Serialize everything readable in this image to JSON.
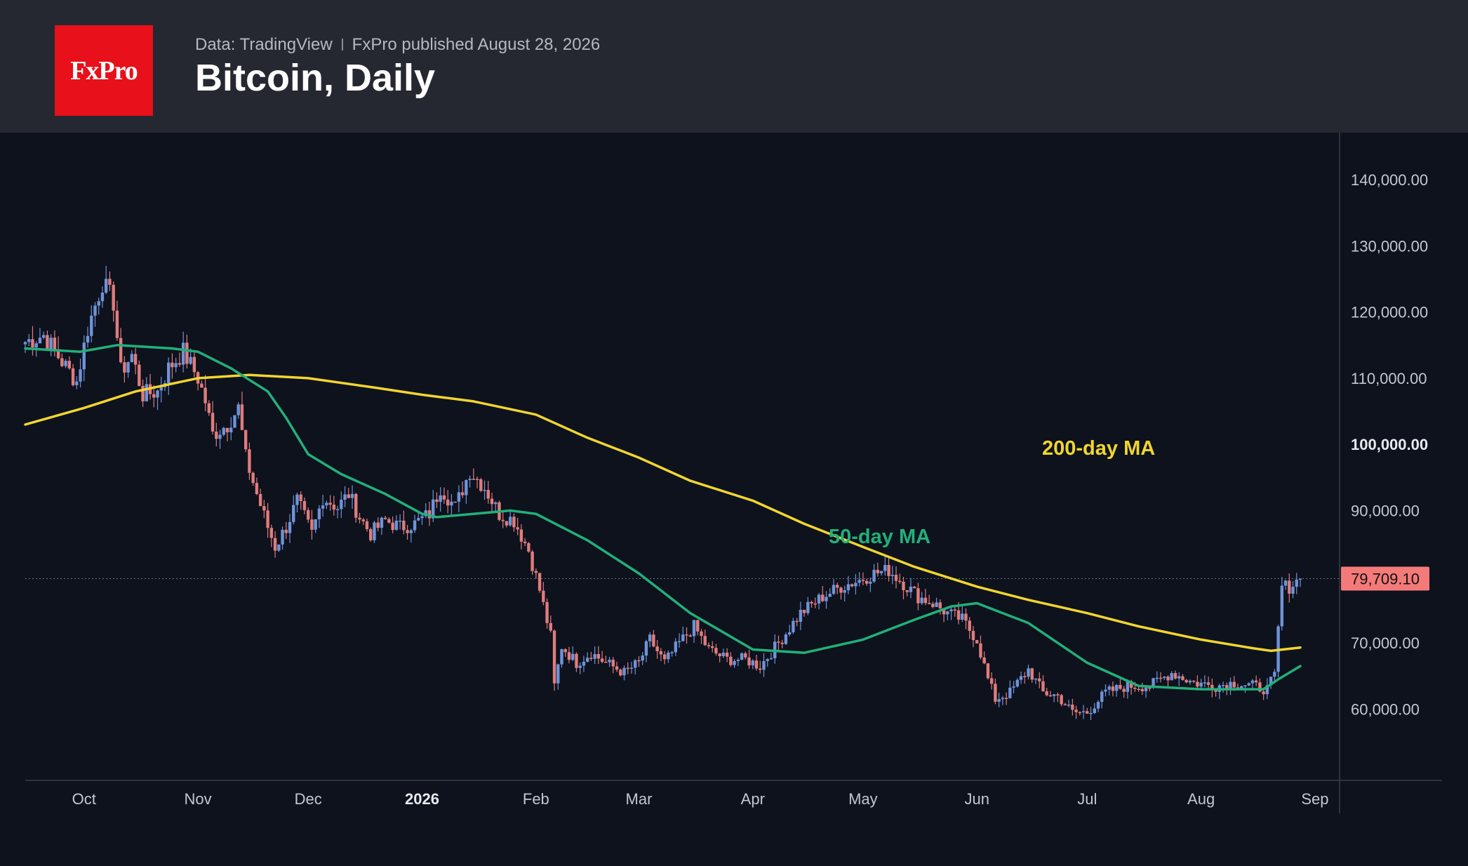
{
  "header": {
    "logo_text": "FxPro",
    "source": "Data: TradingView",
    "published": "FxPro published August 28, 2026",
    "title": "Bitcoin, Daily"
  },
  "colors": {
    "background": "#0d121d",
    "header_bg": "#262831",
    "logo_red": "#e8101a",
    "candle_up": "#6f93d8",
    "candle_down": "#e07c7c",
    "ma50": "#22b07a",
    "ma200": "#f2d52f",
    "price_tag": "#f47a7a"
  },
  "chart_data": {
    "type": "candlestick",
    "instrument": "Bitcoin",
    "timeframe": "Daily",
    "x_range": [
      "2025-09-15",
      "2026-08-28"
    ],
    "ylim": [
      50000,
      145000
    ],
    "y_ticks": [
      {
        "value": 140000,
        "label": "140,000.00",
        "bold": false
      },
      {
        "value": 130000,
        "label": "130,000.00",
        "bold": false
      },
      {
        "value": 120000,
        "label": "120,000.00",
        "bold": false
      },
      {
        "value": 110000,
        "label": "110,000.00",
        "bold": false
      },
      {
        "value": 100000,
        "label": "100,000.00",
        "bold": true
      },
      {
        "value": 90000,
        "label": "90,000.00",
        "bold": false
      },
      {
        "value": 70000,
        "label": "70,000.00",
        "bold": false
      },
      {
        "value": 60000,
        "label": "60,000.00",
        "bold": false
      }
    ],
    "x_ticks": [
      {
        "date": "2025-10-01",
        "label": "Oct",
        "bold": false
      },
      {
        "date": "2025-11-01",
        "label": "Nov",
        "bold": false
      },
      {
        "date": "2025-12-01",
        "label": "Dec",
        "bold": false
      },
      {
        "date": "2026-01-01",
        "label": "2026",
        "bold": true
      },
      {
        "date": "2026-02-01",
        "label": "Feb",
        "bold": false
      },
      {
        "date": "2026-03-01",
        "label": "Mar",
        "bold": false
      },
      {
        "date": "2026-04-01",
        "label": "Apr",
        "bold": false
      },
      {
        "date": "2026-05-01",
        "label": "May",
        "bold": false
      },
      {
        "date": "2026-06-01",
        "label": "Jun",
        "bold": false
      },
      {
        "date": "2026-07-01",
        "label": "Jul",
        "bold": false
      },
      {
        "date": "2026-08-01",
        "label": "Aug",
        "bold": false
      },
      {
        "date": "2026-09-01",
        "label": "Sep",
        "bold": false
      }
    ],
    "close_path": [
      [
        "2025-09-15",
        115500
      ],
      [
        "2025-09-20",
        116500
      ],
      [
        "2025-09-25",
        112500
      ],
      [
        "2025-09-29",
        109500
      ],
      [
        "2025-10-02",
        117500
      ],
      [
        "2025-10-06",
        124500
      ],
      [
        "2025-10-09",
        121500
      ],
      [
        "2025-10-11",
        111000
      ],
      [
        "2025-10-14",
        113500
      ],
      [
        "2025-10-17",
        107500
      ],
      [
        "2025-10-21",
        108000
      ],
      [
        "2025-10-24",
        111500
      ],
      [
        "2025-10-28",
        114000
      ],
      [
        "2025-11-01",
        110000
      ],
      [
        "2025-11-03",
        106500
      ],
      [
        "2025-11-05",
        101500
      ],
      [
        "2025-11-09",
        103000
      ],
      [
        "2025-11-12",
        105500
      ],
      [
        "2025-11-14",
        98000
      ],
      [
        "2025-11-17",
        92500
      ],
      [
        "2025-11-20",
        87500
      ],
      [
        "2025-11-22",
        84500
      ],
      [
        "2025-11-25",
        87500
      ],
      [
        "2025-11-28",
        91500
      ],
      [
        "2025-12-02",
        86500
      ],
      [
        "2025-12-05",
        92000
      ],
      [
        "2025-12-09",
        90500
      ],
      [
        "2025-12-12",
        92500
      ],
      [
        "2025-12-15",
        89000
      ],
      [
        "2025-12-18",
        86500
      ],
      [
        "2025-12-22",
        88500
      ],
      [
        "2025-12-26",
        87500
      ],
      [
        "2025-12-30",
        88000
      ],
      [
        "2026-01-03",
        89500
      ],
      [
        "2026-01-06",
        93500
      ],
      [
        "2026-01-10",
        90500
      ],
      [
        "2026-01-14",
        96000
      ],
      [
        "2026-01-18",
        93500
      ],
      [
        "2026-01-22",
        89500
      ],
      [
        "2026-01-26",
        88500
      ],
      [
        "2026-01-30",
        84000
      ],
      [
        "2026-02-02",
        78000
      ],
      [
        "2026-02-05",
        71000
      ],
      [
        "2026-02-06",
        63500
      ],
      [
        "2026-02-08",
        69500
      ],
      [
        "2026-02-12",
        67000
      ],
      [
        "2026-02-16",
        68500
      ],
      [
        "2026-02-20",
        67000
      ],
      [
        "2026-02-25",
        65500
      ],
      [
        "2026-03-01",
        67000
      ],
      [
        "2026-03-04",
        70500
      ],
      [
        "2026-03-08",
        67000
      ],
      [
        "2026-03-12",
        70000
      ],
      [
        "2026-03-16",
        72500
      ],
      [
        "2026-03-20",
        69000
      ],
      [
        "2026-03-25",
        67500
      ],
      [
        "2026-03-30",
        67500
      ],
      [
        "2026-04-03",
        66500
      ],
      [
        "2026-04-08",
        70000
      ],
      [
        "2026-04-14",
        74500
      ],
      [
        "2026-04-20",
        77000
      ],
      [
        "2026-04-25",
        78500
      ],
      [
        "2026-04-30",
        79500
      ],
      [
        "2026-05-04",
        80500
      ],
      [
        "2026-05-08",
        81000
      ],
      [
        "2026-05-12",
        79000
      ],
      [
        "2026-05-16",
        77000
      ],
      [
        "2026-05-20",
        76000
      ],
      [
        "2026-05-24",
        74500
      ],
      [
        "2026-05-28",
        73500
      ],
      [
        "2026-06-01",
        70500
      ],
      [
        "2026-06-04",
        64500
      ],
      [
        "2026-06-06",
        61500
      ],
      [
        "2026-06-10",
        62500
      ],
      [
        "2026-06-15",
        66000
      ],
      [
        "2026-06-19",
        62500
      ],
      [
        "2026-06-23",
        62000
      ],
      [
        "2026-06-27",
        59500
      ],
      [
        "2026-07-01",
        59500
      ],
      [
        "2026-07-06",
        62500
      ],
      [
        "2026-07-12",
        63500
      ],
      [
        "2026-07-18",
        63500
      ],
      [
        "2026-07-24",
        65500
      ],
      [
        "2026-07-30",
        64000
      ],
      [
        "2026-08-05",
        63500
      ],
      [
        "2026-08-10",
        64000
      ],
      [
        "2026-08-15",
        63500
      ],
      [
        "2026-08-19",
        63000
      ],
      [
        "2026-08-21",
        65000
      ],
      [
        "2026-08-22",
        72000
      ],
      [
        "2026-08-23",
        78500
      ],
      [
        "2026-08-25",
        78500
      ],
      [
        "2026-08-28",
        79709
      ]
    ],
    "series": [
      {
        "name": "200-day MA",
        "color": "#f2d52f",
        "points": [
          [
            "2025-09-15",
            103000
          ],
          [
            "2025-10-01",
            105500
          ],
          [
            "2025-10-15",
            108000
          ],
          [
            "2025-11-01",
            110000
          ],
          [
            "2025-11-15",
            110500
          ],
          [
            "2025-12-01",
            110000
          ],
          [
            "2025-12-20",
            108500
          ],
          [
            "2026-01-01",
            107500
          ],
          [
            "2026-01-15",
            106500
          ],
          [
            "2026-02-01",
            104500
          ],
          [
            "2026-02-15",
            101000
          ],
          [
            "2026-03-01",
            98000
          ],
          [
            "2026-03-15",
            94500
          ],
          [
            "2026-04-01",
            91500
          ],
          [
            "2026-04-15",
            88000
          ],
          [
            "2026-05-01",
            84500
          ],
          [
            "2026-05-15",
            81500
          ],
          [
            "2026-06-01",
            78500
          ],
          [
            "2026-06-15",
            76500
          ],
          [
            "2026-07-01",
            74500
          ],
          [
            "2026-07-15",
            72500
          ],
          [
            "2026-08-01",
            70500
          ],
          [
            "2026-08-15",
            69200
          ],
          [
            "2026-08-20",
            68800
          ],
          [
            "2026-08-28",
            69300
          ]
        ]
      },
      {
        "name": "50-day MA",
        "color": "#22b07a",
        "points": [
          [
            "2025-09-15",
            114500
          ],
          [
            "2025-09-30",
            114000
          ],
          [
            "2025-10-10",
            115000
          ],
          [
            "2025-10-25",
            114500
          ],
          [
            "2025-11-01",
            114000
          ],
          [
            "2025-11-10",
            111500
          ],
          [
            "2025-11-20",
            108000
          ],
          [
            "2025-11-25",
            104000
          ],
          [
            "2025-12-01",
            98500
          ],
          [
            "2025-12-10",
            95500
          ],
          [
            "2025-12-22",
            92500
          ],
          [
            "2026-01-01",
            89500
          ],
          [
            "2026-01-05",
            89000
          ],
          [
            "2026-01-15",
            89500
          ],
          [
            "2026-01-25",
            90000
          ],
          [
            "2026-02-01",
            89500
          ],
          [
            "2026-02-15",
            85500
          ],
          [
            "2026-03-01",
            80500
          ],
          [
            "2026-03-15",
            74500
          ],
          [
            "2026-04-01",
            69000
          ],
          [
            "2026-04-15",
            68500
          ],
          [
            "2026-05-01",
            70500
          ],
          [
            "2026-05-15",
            73500
          ],
          [
            "2026-05-25",
            75500
          ],
          [
            "2026-06-01",
            76000
          ],
          [
            "2026-06-15",
            73000
          ],
          [
            "2026-07-01",
            67000
          ],
          [
            "2026-07-15",
            63500
          ],
          [
            "2026-08-01",
            63000
          ],
          [
            "2026-08-18",
            63000
          ],
          [
            "2026-08-22",
            64500
          ],
          [
            "2026-08-28",
            66500
          ]
        ]
      }
    ],
    "labels": [
      {
        "text": "200-day MA",
        "color": "#f2d52f"
      },
      {
        "text": "50-day MA",
        "color": "#22b07a"
      }
    ],
    "last_price": {
      "value": 79709.1,
      "label": "79,709.10"
    },
    "grid": false,
    "legend": "none"
  }
}
